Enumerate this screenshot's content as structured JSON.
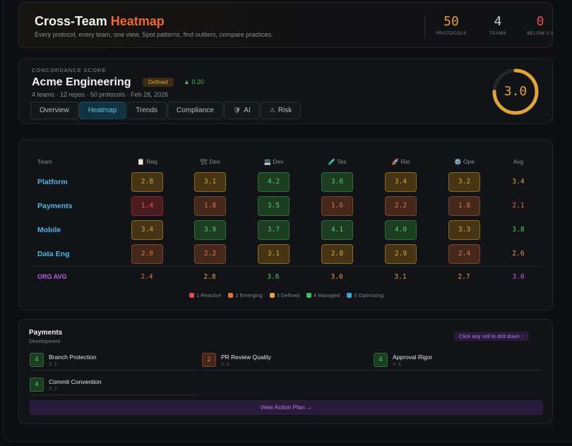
{
  "header": {
    "title_main": "Cross-Team",
    "title_accent": "Heatmap",
    "subtitle": "Every protocol, every team, one view. Spot patterns, find outliers, compare practices.",
    "stats": [
      {
        "value": "50",
        "label": "PROTOCOLS",
        "color": "#e0a23a"
      },
      {
        "value": "4",
        "label": "TEAMS",
        "color": "#c9ccd2"
      },
      {
        "value": "0",
        "label": "BELOW 2.0",
        "color": "#ef4a4a"
      }
    ]
  },
  "org": {
    "eyebrow": "CONCORDANCE SCORE",
    "name": "Acme Engineering",
    "level": "Defined",
    "delta": "▲ 0.20",
    "meta": "4 teams · 12 repos · 50 protocols · Feb 28, 2026",
    "score": "3.0",
    "score_fraction": 0.75,
    "tabs": [
      {
        "label": "Overview",
        "icon": "",
        "active": false
      },
      {
        "label": "Heatmap",
        "icon": "",
        "active": true
      },
      {
        "label": "Trends",
        "icon": "",
        "active": false
      },
      {
        "label": "Compliance",
        "icon": "",
        "active": false
      },
      {
        "label": "AI",
        "icon": "🛡",
        "active": false
      },
      {
        "label": "Risk",
        "icon": "⚠",
        "active": false
      }
    ]
  },
  "heatmap": {
    "team_header": "Team",
    "avg_header": "Avg",
    "columns": [
      {
        "icon": "📋",
        "label": "Req"
      },
      {
        "icon": "🏗",
        "label": "Des"
      },
      {
        "icon": "💻",
        "label": "Dev"
      },
      {
        "icon": "🧪",
        "label": "Tes"
      },
      {
        "icon": "🚀",
        "label": "Rel"
      },
      {
        "icon": "⚙️",
        "label": "Ope"
      }
    ],
    "rows": [
      {
        "team": "Platform",
        "values": [
          "2.8",
          "3.1",
          "4.2",
          "3.6",
          "3.4",
          "3.2"
        ],
        "avg": "3.4"
      },
      {
        "team": "Payments",
        "values": [
          "1.4",
          "1.8",
          "3.5",
          "1.6",
          "2.2",
          "1.8"
        ],
        "avg": "2.1"
      },
      {
        "team": "Mobile",
        "values": [
          "3.4",
          "3.9",
          "3.7",
          "4.1",
          "4.0",
          "3.3"
        ],
        "avg": "3.8"
      },
      {
        "team": "Data Eng",
        "values": [
          "2.0",
          "2.2",
          "3.1",
          "2.8",
          "2.9",
          "2.4"
        ],
        "avg": "2.6"
      }
    ],
    "org_row": {
      "label": "ORG AVG",
      "values": [
        "2.4",
        "2.8",
        "3.6",
        "3.0",
        "3.1",
        "2.7"
      ],
      "avg": "3.0"
    },
    "legend": [
      {
        "label": "1 Reactive",
        "color": "#e14b4b"
      },
      {
        "label": "2 Emerging",
        "color": "#e8703a"
      },
      {
        "label": "3 Defined",
        "color": "#e0a23a"
      },
      {
        "label": "4 Managed",
        "color": "#3fbf5a"
      },
      {
        "label": "5 Optimizing",
        "color": "#3aa8e0"
      }
    ]
  },
  "detail": {
    "title": "Payments",
    "subtitle": "Development",
    "drill_hint": "Click any cell to drill down ↑",
    "protocols": [
      {
        "level": "4",
        "name": "Branch Protection",
        "score": "3.1"
      },
      {
        "level": "2",
        "name": "PR Review Quality",
        "score": "3.2"
      },
      {
        "level": "4",
        "name": "Approval Rigor",
        "score": "3.5"
      },
      {
        "level": "4",
        "name": "Commit Convention",
        "score": "3.7"
      }
    ],
    "action_label": "View Action Plan →"
  }
}
